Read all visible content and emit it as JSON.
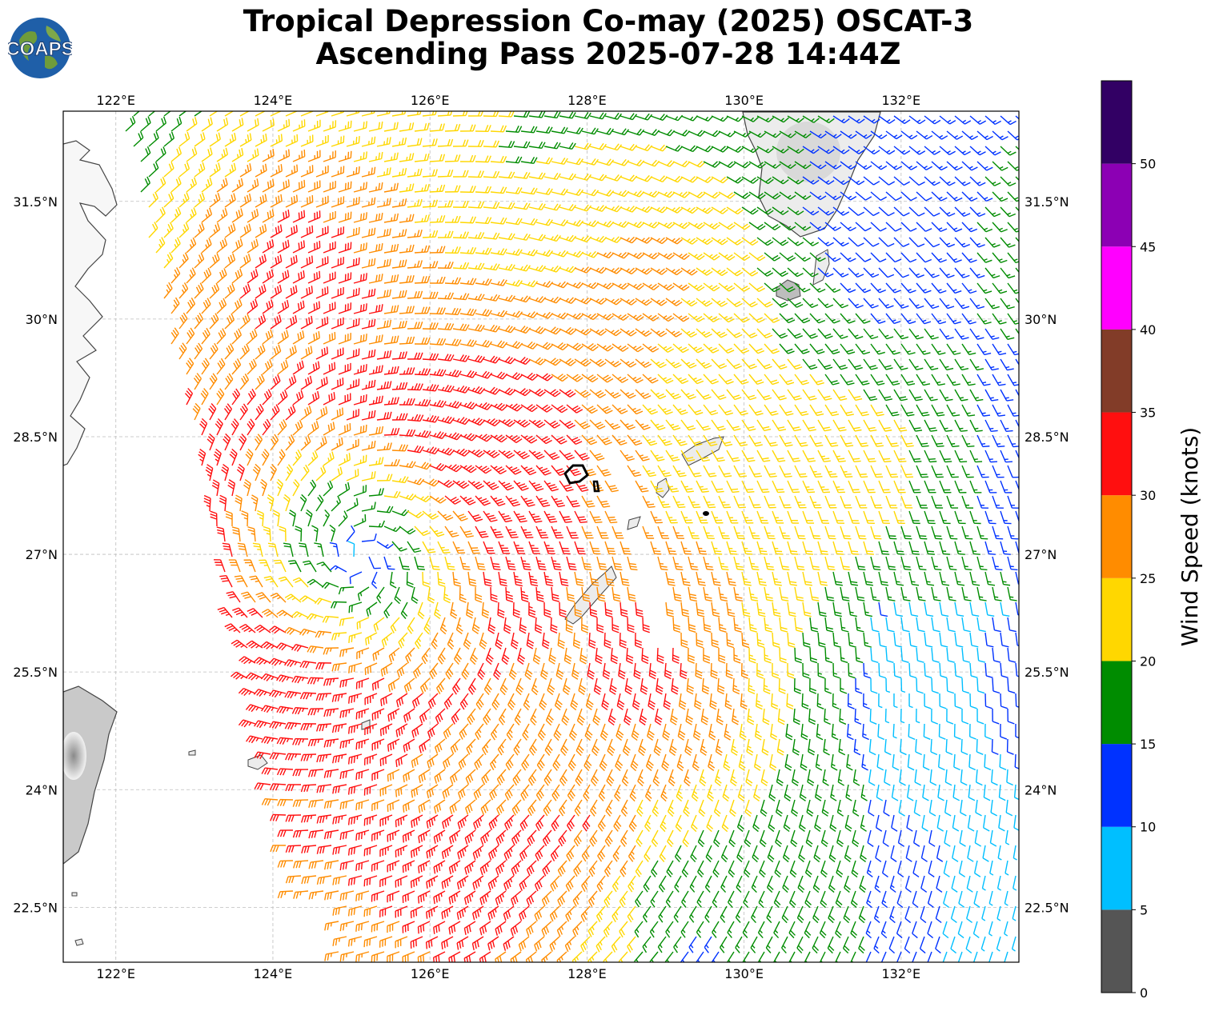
{
  "title": {
    "line1": "Tropical Depression Co-may (2025) OSCAT-3",
    "line2": "Ascending Pass 2025-07-28 14:44Z"
  },
  "logo": {
    "text": "COAPS",
    "icon": "globe-logo-icon"
  },
  "map": {
    "lon_range": [
      121.33,
      133.5
    ],
    "lat_range": [
      21.8,
      32.65
    ],
    "lon_ticks": [
      {
        "value": 122,
        "label": "122°E"
      },
      {
        "value": 124,
        "label": "124°E"
      },
      {
        "value": 126,
        "label": "126°E"
      },
      {
        "value": 128,
        "label": "128°E"
      },
      {
        "value": 130,
        "label": "130°E"
      },
      {
        "value": 132,
        "label": "132°E"
      }
    ],
    "lat_ticks": [
      {
        "value": 22.5,
        "label": "22.5°N"
      },
      {
        "value": 24,
        "label": "24°N"
      },
      {
        "value": 25.5,
        "label": "25.5°N"
      },
      {
        "value": 27,
        "label": "27°N"
      },
      {
        "value": 28.5,
        "label": "28.5°N"
      },
      {
        "value": 30,
        "label": "30°N"
      },
      {
        "value": 31.5,
        "label": "31.5°N"
      }
    ],
    "gridlines": true,
    "storm_center": {
      "lon": 125.1,
      "lat": 26.95
    },
    "vortex_max_speed_kt": 34,
    "field_background_speed_kt": 12
  },
  "colorbar": {
    "label": "Wind Speed (knots)",
    "ticks": [
      "0",
      "5",
      "10",
      "15",
      "20",
      "25",
      "30",
      "35",
      "40",
      "45",
      "50"
    ],
    "bins": [
      {
        "min": 0,
        "max": 5,
        "color": "#555555"
      },
      {
        "min": 5,
        "max": 10,
        "color": "#00bfff"
      },
      {
        "min": 10,
        "max": 15,
        "color": "#0032ff"
      },
      {
        "min": 15,
        "max": 20,
        "color": "#008c00"
      },
      {
        "min": 20,
        "max": 25,
        "color": "#ffd700"
      },
      {
        "min": 25,
        "max": 30,
        "color": "#ff8c00"
      },
      {
        "min": 30,
        "max": 35,
        "color": "#ff0f0f"
      },
      {
        "min": 35,
        "max": 40,
        "color": "#823c28"
      },
      {
        "min": 40,
        "max": 45,
        "color": "#ff00ff"
      },
      {
        "min": 45,
        "max": 50,
        "color": "#8c00b4"
      },
      {
        "min": 50,
        "max": 55,
        "color": "#320064"
      }
    ]
  }
}
